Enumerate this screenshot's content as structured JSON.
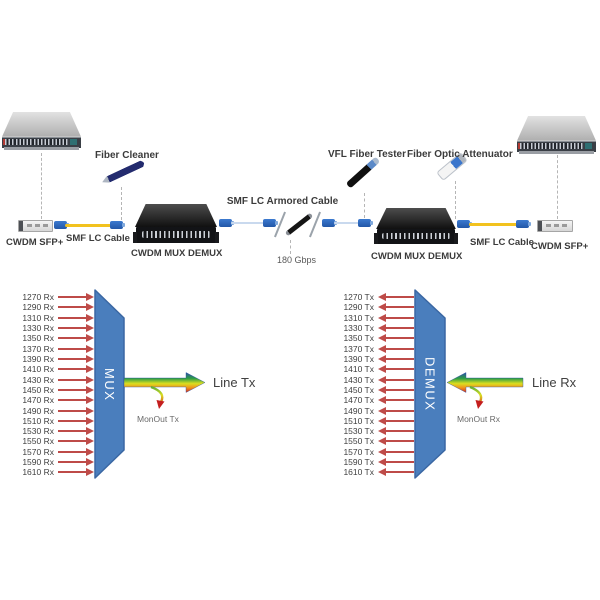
{
  "colors": {
    "shape_blue": "#4A7EBD",
    "shape_blue_border": "#3A67A3",
    "channel_arrow_red": "#BE4B48",
    "cable_yellow": "#F2C21E",
    "lc_connector_blue": "#2E6BC0",
    "label_dark": "#3B3B3B",
    "label_gray": "#595959"
  },
  "top": {
    "fiber_cleaner": "Fiber Cleaner",
    "vfl_tester": "VFL Fiber Tester",
    "attenuator": "Fiber Optic Attenuator",
    "armored_cable": "SMF LC Armored Cable",
    "bandwidth": "180 Gbps",
    "left_sfp": "CWDM SFP+",
    "left_cable": "SMF LC Cable",
    "left_mux": "CWDM MUX DEMUX",
    "right_mux": "CWDM MUX DEMUX",
    "right_cable": "SMF LC Cable",
    "right_sfp": "CWDM SFP+"
  },
  "mux": {
    "label": "MUX",
    "channels": [
      "1270 Rx",
      "1290 Rx",
      "1310 Rx",
      "1330 Rx",
      "1350 Rx",
      "1370 Rx",
      "1390 Rx",
      "1410 Rx",
      "1430 Rx",
      "1450 Rx",
      "1470 Rx",
      "1490 Rx",
      "1510 Rx",
      "1530 Rx",
      "1550 Rx",
      "1570 Rx",
      "1590 Rx",
      "1610 Rx"
    ],
    "line": "Line Tx",
    "monout": "MonOut Tx"
  },
  "demux": {
    "label": "DEMUX",
    "channels": [
      "1270 Tx",
      "1290 Tx",
      "1310 Tx",
      "1330 Tx",
      "1350 Tx",
      "1370 Tx",
      "1390 Tx",
      "1410 Tx",
      "1430 Tx",
      "1450 Tx",
      "1470 Tx",
      "1490 Tx",
      "1510 Tx",
      "1530 Tx",
      "1550 Tx",
      "1570 Tx",
      "1590 Tx",
      "1610 Tx"
    ],
    "line": "Line Rx",
    "monout": "MonOut Rx"
  }
}
